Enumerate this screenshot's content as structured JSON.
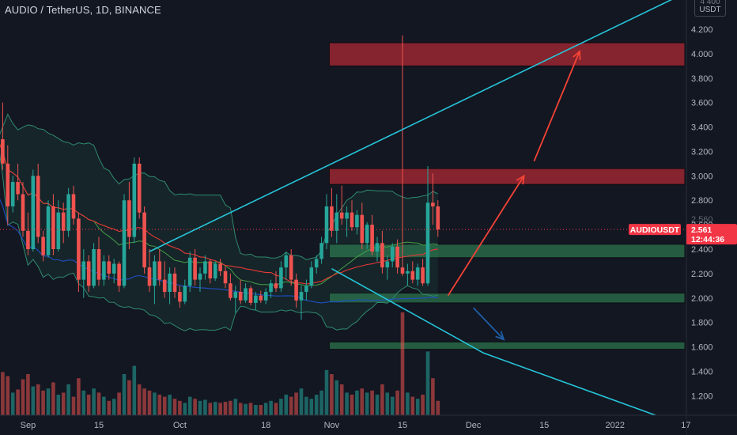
{
  "header": {
    "title": "AUDIO / TetherUS, 1D, BINANCE",
    "currency_top": "4 400",
    "currency": "USDT"
  },
  "colors": {
    "background": "#131722",
    "up_candle": "#26a69a",
    "down_candle": "#ef5350",
    "supply_zone": "#b22833",
    "demand_zone": "#2e7d4f",
    "trendline": "#26c6da",
    "arrow_red": "#f44336",
    "arrow_blue": "#1e5fa6",
    "ma_red": "#e53935",
    "ma_green": "#43a047",
    "ma_blue": "#1e4fc4",
    "bb_band": "#2f8a6d",
    "last_price_tag": "#f23645"
  },
  "price_tag": {
    "symbol": "AUDIOUSDT",
    "price": "2.561",
    "countdown": "12:44:36",
    "partial_label": "2.560"
  },
  "chart_data": {
    "type": "candlestick",
    "y_axis": {
      "min": 1.04,
      "max": 4.44,
      "ticks": [
        "1.200",
        "1.400",
        "1.600",
        "1.800",
        "2.000",
        "2.200",
        "2.400",
        "2.600",
        "2.800",
        "3.000",
        "3.200",
        "3.400",
        "3.600",
        "3.800",
        "4.000",
        "4.200"
      ],
      "tick_values": [
        1.2,
        1.4,
        1.6,
        1.8,
        2.0,
        2.2,
        2.4,
        2.6,
        2.8,
        3.0,
        3.2,
        3.4,
        3.6,
        3.8,
        4.0,
        4.2
      ]
    },
    "x_axis": {
      "ticks": [
        "Sep",
        "15",
        "Oct",
        "18",
        "Nov",
        "15",
        "Dec",
        "15",
        "2022",
        "17"
      ],
      "tick_days": [
        6,
        20,
        36,
        53,
        66,
        80,
        94,
        108,
        122,
        136
      ]
    },
    "last_price": 2.561,
    "ohlc": [
      [
        3.0,
        3.4,
        2.95,
        3.3
      ],
      [
        3.3,
        3.6,
        3.05,
        3.1
      ],
      [
        3.1,
        3.25,
        2.6,
        2.75
      ],
      [
        2.75,
        3.0,
        2.7,
        2.95
      ],
      [
        2.95,
        3.1,
        2.8,
        2.85
      ],
      [
        2.85,
        2.95,
        2.5,
        2.55
      ],
      [
        2.55,
        2.7,
        2.35,
        2.4
      ],
      [
        2.4,
        3.05,
        2.38,
        3.0
      ],
      [
        3.0,
        3.1,
        2.45,
        2.5
      ],
      [
        2.5,
        2.55,
        2.3,
        2.35
      ],
      [
        2.35,
        2.8,
        2.33,
        2.75
      ],
      [
        2.75,
        2.85,
        2.35,
        2.4
      ],
      [
        2.4,
        2.8,
        2.38,
        2.7
      ],
      [
        2.7,
        2.78,
        2.45,
        2.55
      ],
      [
        2.55,
        2.9,
        2.5,
        2.85
      ],
      [
        2.85,
        2.92,
        2.6,
        2.65
      ],
      [
        2.65,
        2.7,
        2.05,
        2.15
      ],
      [
        2.15,
        2.4,
        2.0,
        2.3
      ],
      [
        2.3,
        2.35,
        2.05,
        2.1
      ],
      [
        2.1,
        2.45,
        2.08,
        2.4
      ],
      [
        2.4,
        2.5,
        2.1,
        2.15
      ],
      [
        2.15,
        2.35,
        2.1,
        2.3
      ],
      [
        2.3,
        2.35,
        2.15,
        2.2
      ],
      [
        2.2,
        2.32,
        2.12,
        2.28
      ],
      [
        2.28,
        2.3,
        2.05,
        2.1
      ],
      [
        2.1,
        2.85,
        2.08,
        2.8
      ],
      [
        2.8,
        2.95,
        2.4,
        2.5
      ],
      [
        2.5,
        3.15,
        2.45,
        3.1
      ],
      [
        3.1,
        3.15,
        2.65,
        2.7
      ],
      [
        2.7,
        2.75,
        2.2,
        2.25
      ],
      [
        2.25,
        2.4,
        2.05,
        2.1
      ],
      [
        2.1,
        2.35,
        1.95,
        2.3
      ],
      [
        2.3,
        2.4,
        2.1,
        2.15
      ],
      [
        2.15,
        2.3,
        2.0,
        2.05
      ],
      [
        2.05,
        2.25,
        1.95,
        2.2
      ],
      [
        2.2,
        2.25,
        2.0,
        2.05
      ],
      [
        2.05,
        2.1,
        1.92,
        1.97
      ],
      [
        1.97,
        2.15,
        1.95,
        2.1
      ],
      [
        2.1,
        2.38,
        2.05,
        2.33
      ],
      [
        2.33,
        2.4,
        2.1,
        2.15
      ],
      [
        2.15,
        2.25,
        2.05,
        2.2
      ],
      [
        2.2,
        2.35,
        2.15,
        2.3
      ],
      [
        2.3,
        2.32,
        2.12,
        2.16
      ],
      [
        2.16,
        2.3,
        2.14,
        2.28
      ],
      [
        2.28,
        2.32,
        2.18,
        2.22
      ],
      [
        2.22,
        2.26,
        2.08,
        2.12
      ],
      [
        2.12,
        2.2,
        1.98,
        2.0
      ],
      [
        2.0,
        2.1,
        1.88,
        2.05
      ],
      [
        2.05,
        2.15,
        1.95,
        1.98
      ],
      [
        1.98,
        2.12,
        1.96,
        2.08
      ],
      [
        2.08,
        2.1,
        1.94,
        1.96
      ],
      [
        1.96,
        2.05,
        1.9,
        2.02
      ],
      [
        2.02,
        2.06,
        1.96,
        1.98
      ],
      [
        1.98,
        2.08,
        1.95,
        2.05
      ],
      [
        2.05,
        2.15,
        2.0,
        2.12
      ],
      [
        2.12,
        2.22,
        2.05,
        2.08
      ],
      [
        2.08,
        2.3,
        2.05,
        2.25
      ],
      [
        2.25,
        2.38,
        2.15,
        2.35
      ],
      [
        2.35,
        2.4,
        2.1,
        2.15
      ],
      [
        2.15,
        2.2,
        1.92,
        1.98
      ],
      [
        1.98,
        2.1,
        1.82,
        2.05
      ],
      [
        2.05,
        2.15,
        1.98,
        2.1
      ],
      [
        2.1,
        2.3,
        2.08,
        2.25
      ],
      [
        2.25,
        2.35,
        2.2,
        2.32
      ],
      [
        2.32,
        2.5,
        2.28,
        2.45
      ],
      [
        2.45,
        2.85,
        2.4,
        2.75
      ],
      [
        2.75,
        2.9,
        2.5,
        2.55
      ],
      [
        2.55,
        2.85,
        2.45,
        2.7
      ],
      [
        2.7,
        2.92,
        2.6,
        2.65
      ],
      [
        2.65,
        2.75,
        2.5,
        2.7
      ],
      [
        2.7,
        2.8,
        2.55,
        2.58
      ],
      [
        2.58,
        2.72,
        2.52,
        2.68
      ],
      [
        2.68,
        2.78,
        2.4,
        2.45
      ],
      [
        2.45,
        2.62,
        2.4,
        2.6
      ],
      [
        2.6,
        2.68,
        2.35,
        2.38
      ],
      [
        2.38,
        2.5,
        2.3,
        2.45
      ],
      [
        2.45,
        2.55,
        2.2,
        2.25
      ],
      [
        2.25,
        2.35,
        2.15,
        2.3
      ],
      [
        2.3,
        2.45,
        2.25,
        2.42
      ],
      [
        2.42,
        2.48,
        2.2,
        2.25
      ],
      [
        2.25,
        4.15,
        2.18,
        2.2
      ],
      [
        2.2,
        2.28,
        2.1,
        2.22
      ],
      [
        2.22,
        2.3,
        2.12,
        2.15
      ],
      [
        2.15,
        2.28,
        2.1,
        2.25
      ],
      [
        2.25,
        2.32,
        2.1,
        2.12
      ],
      [
        2.12,
        3.08,
        2.1,
        2.78
      ],
      [
        2.78,
        3.02,
        2.6,
        2.75
      ],
      [
        2.75,
        2.8,
        2.5,
        2.561
      ]
    ],
    "volume": [
      0.3,
      0.42,
      0.38,
      0.22,
      0.25,
      0.35,
      0.4,
      0.28,
      0.3,
      0.24,
      0.26,
      0.32,
      0.2,
      0.22,
      0.3,
      0.18,
      0.36,
      0.24,
      0.2,
      0.26,
      0.22,
      0.18,
      0.14,
      0.16,
      0.22,
      0.4,
      0.34,
      0.48,
      0.3,
      0.26,
      0.24,
      0.22,
      0.2,
      0.18,
      0.2,
      0.16,
      0.14,
      0.12,
      0.18,
      0.16,
      0.14,
      0.15,
      0.12,
      0.13,
      0.12,
      0.13,
      0.14,
      0.16,
      0.12,
      0.11,
      0.12,
      0.1,
      0.1,
      0.12,
      0.14,
      0.12,
      0.16,
      0.2,
      0.18,
      0.22,
      0.26,
      0.18,
      0.16,
      0.2,
      0.24,
      0.44,
      0.4,
      0.34,
      0.3,
      0.22,
      0.2,
      0.24,
      0.26,
      0.22,
      0.24,
      0.2,
      0.3,
      0.22,
      0.18,
      0.24,
      1.0,
      0.22,
      0.18,
      0.16,
      0.2,
      0.62,
      0.36,
      0.14
    ],
    "zones": [
      {
        "kind": "supply",
        "low": 3.9,
        "high": 4.09,
        "from_index": 66
      },
      {
        "kind": "supply",
        "low": 2.93,
        "high": 3.06,
        "from_index": 66
      },
      {
        "kind": "demand",
        "low": 2.33,
        "high": 2.44,
        "from_index": 66
      },
      {
        "kind": "demand",
        "low": 1.96,
        "high": 2.04,
        "from_index": 66
      },
      {
        "kind": "demand",
        "low": 1.58,
        "high": 1.64,
        "from_index": 66
      }
    ],
    "trendlines": [
      {
        "kind": "rising",
        "points": [
          [
            30,
            2.38
          ],
          [
            80,
            3.38
          ],
          [
            150,
            4.78
          ]
        ]
      },
      {
        "kind": "falling",
        "points": [
          [
            66,
            2.24
          ],
          [
            96,
            1.55
          ],
          [
            130,
            1.04
          ]
        ]
      }
    ],
    "arrows": [
      {
        "kind": "up",
        "from": [
          89,
          2.02
        ],
        "to": [
          104,
          3.0
        ]
      },
      {
        "kind": "up",
        "from": [
          106,
          3.12
        ],
        "to": [
          115,
          4.02
        ]
      },
      {
        "kind": "down",
        "from": [
          94,
          1.92
        ],
        "to": [
          100,
          1.66
        ]
      }
    ]
  }
}
